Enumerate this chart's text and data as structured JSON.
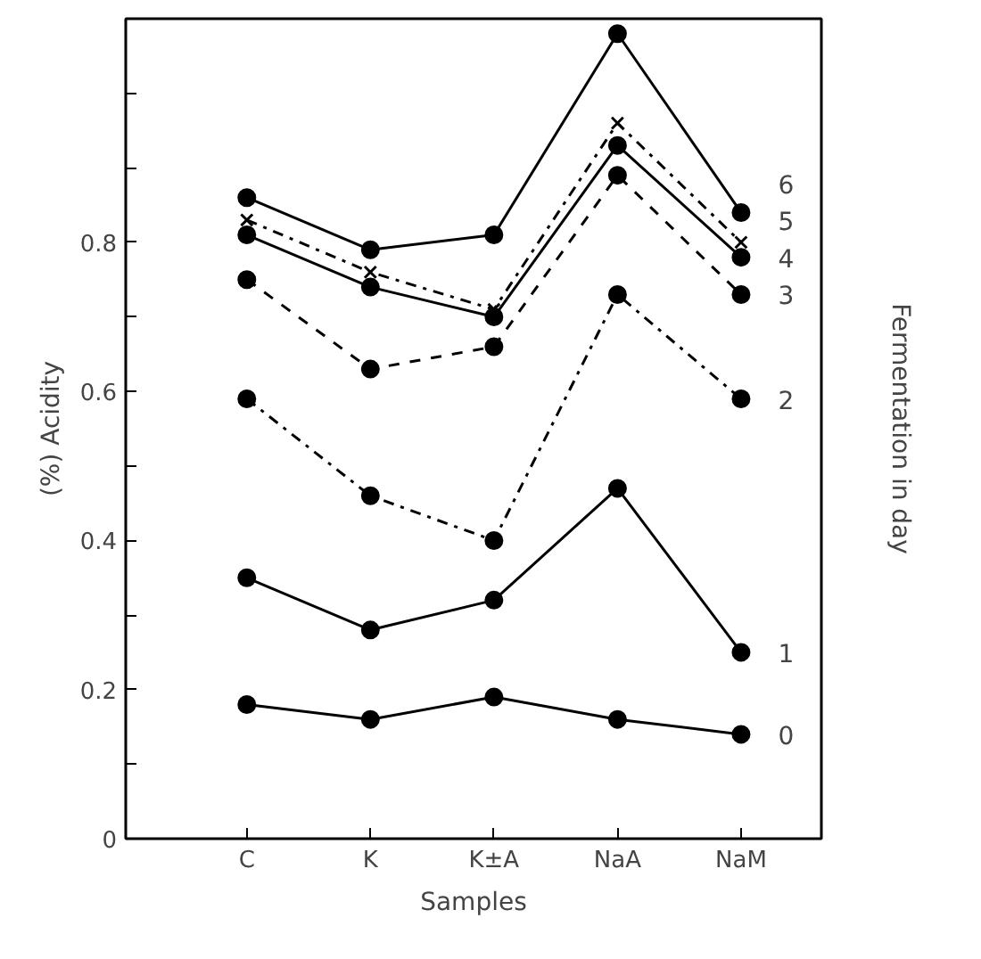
{
  "chart_data": {
    "type": "line",
    "xlabel": "Samples",
    "ylabel": "(%) Acidity",
    "y2label": "Fermentation in day",
    "categories": [
      "C",
      "K",
      "K±A",
      "NaA",
      "NaM"
    ],
    "ylim": [
      0,
      1.1
    ],
    "yticks": [
      0,
      {
        "value": 0.1,
        "label": null
      },
      0.2,
      {
        "value": 0.3,
        "label": null
      },
      0.4,
      {
        "value": 0.5,
        "label": null
      },
      0.6,
      {
        "value": 0.7,
        "label": null
      },
      0.8,
      {
        "value": 0.9,
        "label": null
      },
      {
        "value": 1.0,
        "label": null
      }
    ],
    "grid": false,
    "legend": false,
    "series": [
      {
        "name": "0",
        "color": "#000000",
        "marker": "circle",
        "line_style": "solid",
        "values": [
          0.18,
          0.16,
          0.19,
          0.16,
          0.14
        ]
      },
      {
        "name": "1",
        "color": "#000000",
        "marker": "circle",
        "line_style": "solid",
        "values": [
          0.35,
          0.28,
          0.32,
          0.47,
          0.25
        ]
      },
      {
        "name": "2",
        "color": "#000000",
        "marker": "circle",
        "line_style": "dashdot",
        "values": [
          0.59,
          0.46,
          0.4,
          0.73,
          0.59
        ]
      },
      {
        "name": "3",
        "color": "#000000",
        "marker": "circle",
        "line_style": "dashed",
        "values": [
          0.75,
          0.63,
          0.66,
          0.89,
          0.73
        ]
      },
      {
        "name": "4",
        "color": "#000000",
        "marker": "circle",
        "line_style": "solid",
        "values": [
          0.81,
          0.74,
          0.7,
          0.93,
          0.78
        ]
      },
      {
        "name": "5",
        "color": "#000000",
        "marker": "cross",
        "line_style": "dashdot",
        "values": [
          0.83,
          0.76,
          0.71,
          0.96,
          0.8
        ]
      },
      {
        "name": "6",
        "color": "#000000",
        "marker": "circle",
        "line_style": "solid",
        "values": [
          0.86,
          0.79,
          0.81,
          1.08,
          0.84
        ]
      }
    ]
  }
}
